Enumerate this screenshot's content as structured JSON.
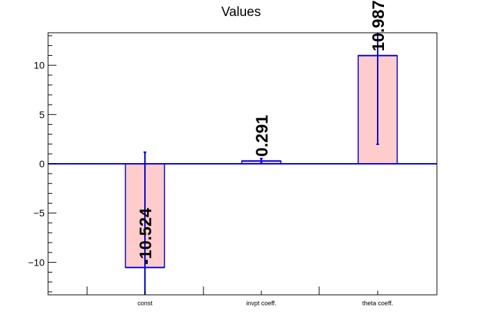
{
  "chart_data": {
    "type": "bar",
    "title": "Values",
    "xlabel": "",
    "ylabel": "",
    "categories": [
      "const",
      "invpt coeff.",
      "theta coeff."
    ],
    "values": [
      -10.524,
      0.291,
      10.987
    ],
    "data_labels": [
      "-10.524",
      "0.291",
      "10.987"
    ],
    "errors": [
      11.7,
      0.24,
      9.0
    ],
    "ylim": [
      -13.3,
      13.3
    ],
    "yticks": [
      -10,
      -5,
      0,
      5,
      10
    ],
    "ytick_labels": [
      "−10",
      "−5",
      "0",
      "5",
      "10"
    ],
    "grid": false,
    "legend": "none",
    "colors": {
      "bar_fill": "#ffcccc",
      "bar_edge": "#0000ee",
      "error_bar": "#0000ee",
      "axis": "#000000"
    }
  }
}
